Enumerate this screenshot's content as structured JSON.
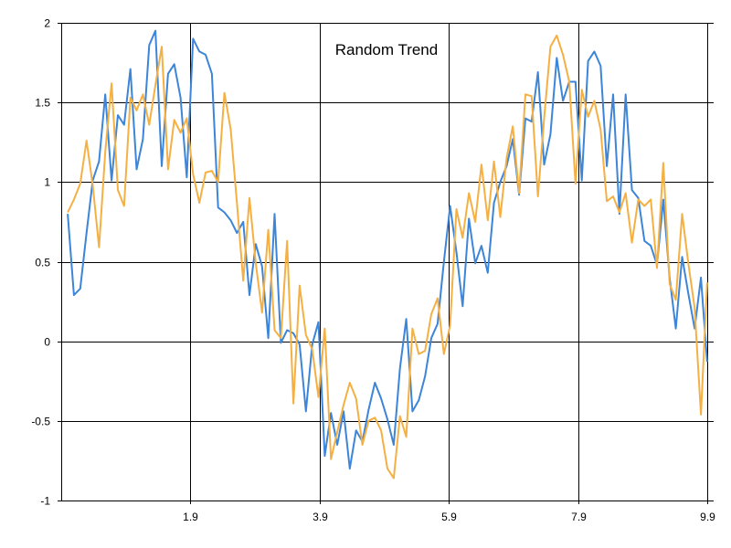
{
  "chart_data": {
    "type": "line",
    "title": "Random Trend",
    "xlabel": "",
    "ylabel": "",
    "xlim": [
      -0.1,
      10.0
    ],
    "ylim": [
      -1,
      2
    ],
    "x_ticks": [
      {
        "value": 1.9,
        "label": "1.9"
      },
      {
        "value": 3.9,
        "label": "3.9"
      },
      {
        "value": 5.9,
        "label": "5.9"
      },
      {
        "value": 7.9,
        "label": "7.9"
      },
      {
        "value": 9.9,
        "label": "9.9"
      }
    ],
    "y_ticks": [
      {
        "value": -1,
        "label": "-1"
      },
      {
        "value": -0.5,
        "label": "-0.5"
      },
      {
        "value": 0,
        "label": "0"
      },
      {
        "value": 0.5,
        "label": "0.5"
      },
      {
        "value": 1,
        "label": "1"
      },
      {
        "value": 1.5,
        "label": "1.5"
      },
      {
        "value": 2,
        "label": "2"
      }
    ],
    "grid": true,
    "series": [
      {
        "color": "#3c85d9",
        "values": [
          0.8,
          0.29,
          0.33,
          0.68,
          1.01,
          1.13,
          1.55,
          1.01,
          1.42,
          1.36,
          1.71,
          1.08,
          1.27,
          1.86,
          1.95,
          1.1,
          1.68,
          1.74,
          1.53,
          1.03,
          1.9,
          1.82,
          1.8,
          1.68,
          0.84,
          0.81,
          0.76,
          0.68,
          0.75,
          0.29,
          0.61,
          0.47,
          0.02,
          0.8,
          -0.01,
          0.07,
          0.05,
          -0.02,
          -0.44,
          -0.02,
          0.12,
          -0.72,
          -0.45,
          -0.65,
          -0.44,
          -0.8,
          -0.56,
          -0.63,
          -0.43,
          -0.26,
          -0.36,
          -0.49,
          -0.65,
          -0.17,
          0.14,
          -0.44,
          -0.37,
          -0.22,
          0.02,
          0.11,
          0.5,
          0.85,
          0.56,
          0.22,
          0.77,
          0.49,
          0.6,
          0.43,
          0.87,
          1.0,
          1.1,
          1.27,
          0.92,
          1.4,
          1.38,
          1.69,
          1.11,
          1.3,
          1.78,
          1.51,
          1.63,
          1.63,
          1.01,
          1.76,
          1.82,
          1.73,
          1.1,
          1.55,
          0.8,
          1.55,
          0.95,
          0.9,
          0.63,
          0.6,
          0.48,
          0.89,
          0.4,
          0.08,
          0.53,
          0.3,
          0.08,
          0.4,
          -0.13
        ]
      },
      {
        "color": "#f5b043",
        "values": [
          0.81,
          0.89,
          0.99,
          1.26,
          0.98,
          0.59,
          1.19,
          1.62,
          0.95,
          0.85,
          1.53,
          1.45,
          1.55,
          1.36,
          1.61,
          1.85,
          1.08,
          1.39,
          1.31,
          1.4,
          1.05,
          0.87,
          1.06,
          1.07,
          1.0,
          1.56,
          1.33,
          0.87,
          0.38,
          0.9,
          0.49,
          0.18,
          0.7,
          0.07,
          0.02,
          0.63,
          -0.39,
          0.35,
          0.04,
          -0.05,
          -0.35,
          0.08,
          -0.74,
          -0.57,
          -0.4,
          -0.26,
          -0.36,
          -0.65,
          -0.5,
          -0.48,
          -0.56,
          -0.8,
          -0.86,
          -0.47,
          -0.6,
          0.08,
          -0.08,
          -0.06,
          0.17,
          0.27,
          -0.08,
          0.1,
          0.83,
          0.65,
          0.93,
          0.75,
          1.11,
          0.76,
          1.13,
          0.78,
          1.15,
          1.35,
          0.93,
          1.55,
          1.54,
          0.91,
          1.4,
          1.85,
          1.92,
          1.8,
          1.63,
          0.99,
          1.58,
          1.41,
          1.51,
          1.33,
          0.88,
          0.91,
          0.81,
          0.93,
          0.62,
          0.89,
          0.85,
          0.89,
          0.46,
          1.12,
          0.36,
          0.26,
          0.8,
          0.49,
          0.21,
          -0.46,
          0.37
        ]
      }
    ]
  }
}
